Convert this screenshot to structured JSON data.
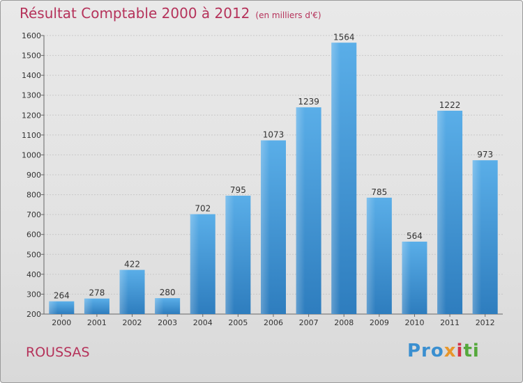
{
  "title": "Résultat Comptable 2000 à 2012",
  "subtitle": "(en milliers d'€)",
  "place": "ROUSSAS",
  "logo": {
    "text": "Proxiti",
    "p1": "Pro",
    "p2": "x",
    "p3": "i",
    "p4": "ti"
  },
  "colors": {
    "accent": "#b5325a",
    "bar_top": "#5aaee8",
    "bar_bottom": "#2e7dbe"
  },
  "chart_data": {
    "type": "bar",
    "title": "Résultat Comptable 2000 à 2012",
    "subtitle": "(en milliers d'€)",
    "categories": [
      "2000",
      "2001",
      "2002",
      "2003",
      "2004",
      "2005",
      "2006",
      "2007",
      "2008",
      "2009",
      "2010",
      "2011",
      "2012"
    ],
    "values": [
      264,
      278,
      422,
      280,
      702,
      795,
      1073,
      1239,
      1564,
      785,
      564,
      1222,
      973
    ],
    "ylim": [
      200,
      1600
    ],
    "yticks": [
      200,
      300,
      400,
      500,
      600,
      700,
      800,
      900,
      1000,
      1100,
      1200,
      1300,
      1400,
      1500,
      1600
    ],
    "grid": true,
    "xlabel": "",
    "ylabel": ""
  }
}
